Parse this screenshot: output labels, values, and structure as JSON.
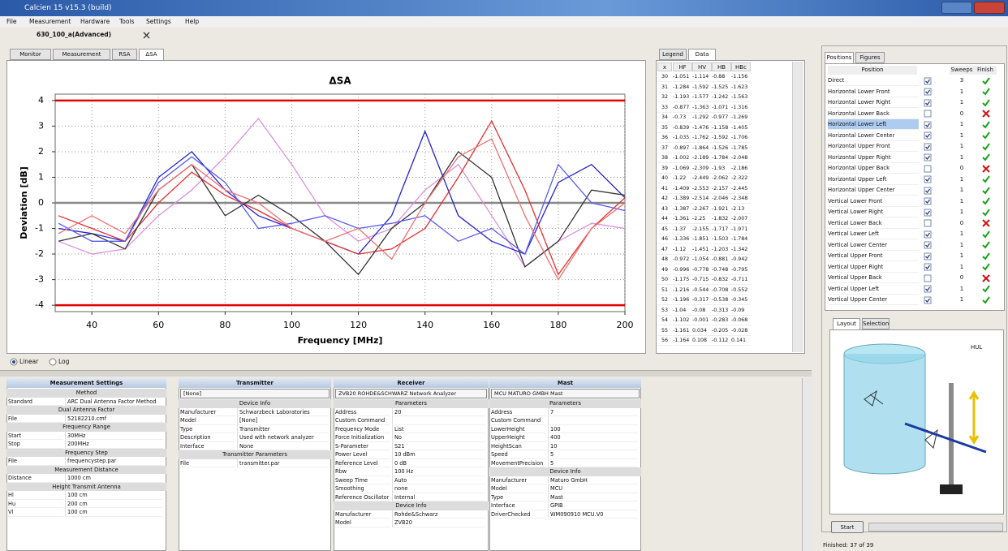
{
  "window": {
    "title": "Calcien 15 v15.3 (build)"
  },
  "menu": [
    "File",
    "Measurement",
    "Hardware",
    "Tools",
    "Settings",
    "Help"
  ],
  "document_tab": "630_100_a(Advanced)",
  "view_tabs": [
    "Monitor",
    "Measurement",
    "RSA",
    "ΔSA"
  ],
  "chart_data": {
    "type": "line",
    "title": "ΔSA",
    "x_label": "Frequency [MHz]",
    "y_label": "Deviation [dB]",
    "x": [
      30,
      40,
      50,
      60,
      70,
      80,
      90,
      100,
      110,
      120,
      130,
      140,
      150,
      160,
      170,
      180,
      190,
      200
    ],
    "series": [
      {
        "color": "#e08ede",
        "values": [
          -1.5,
          -2,
          -1.8,
          -0.5,
          0.5,
          1.8,
          3.3,
          1.5,
          -0.5,
          -1.5,
          -1,
          0.5,
          1.5,
          -0.5,
          -2.5,
          -1.5,
          -0.8,
          -1
        ]
      },
      {
        "color": "#2424d0",
        "values": [
          -1,
          -1.2,
          -1.5,
          1,
          2,
          0.5,
          -0.5,
          -1,
          -1.5,
          -2,
          -0.5,
          2.8,
          -0.5,
          -1.5,
          -2,
          0.8,
          1.5,
          0.2
        ]
      },
      {
        "color": "#e23030",
        "values": [
          -0.5,
          -1,
          -1.5,
          0,
          1.2,
          0.3,
          -0.3,
          -1,
          -1.5,
          -2,
          -1.8,
          -1,
          1,
          3.2,
          0.5,
          -2.8,
          -1,
          0.2
        ]
      },
      {
        "color": "#333333",
        "values": [
          -1.5,
          -1.2,
          -1.8,
          0.5,
          1.5,
          -0.5,
          0.3,
          -0.5,
          -1.5,
          -2.8,
          -1,
          0,
          2,
          1,
          -2.5,
          -1.5,
          0.5,
          0.3
        ]
      },
      {
        "color": "#5a5af0",
        "values": [
          -0.8,
          -1.5,
          -1.5,
          0.8,
          1.8,
          0.8,
          -1,
          -0.8,
          -0.5,
          -1,
          -0.8,
          -0.5,
          -1.5,
          -1,
          -2,
          1.5,
          0,
          -0.3
        ]
      },
      {
        "color": "#f07070",
        "values": [
          -1.2,
          -0.5,
          -1.2,
          0.5,
          1.5,
          0.5,
          0,
          -1,
          -1.5,
          -1,
          -2.2,
          0,
          1.8,
          2.5,
          -0.5,
          -3,
          -1,
          0
        ]
      }
    ],
    "xlim": [
      29,
      200
    ],
    "ylim": [
      -4.25,
      4.25
    ],
    "xticks": [
      40,
      60,
      80,
      100,
      120,
      140,
      160,
      180,
      200
    ],
    "yticks": [
      -4,
      -3,
      -2,
      -1,
      0,
      1,
      2,
      3,
      4
    ],
    "grid": true,
    "limit_lines": [
      -4,
      4
    ],
    "limit_color": "#e00000"
  },
  "scale_options": [
    "Linear",
    "Log"
  ],
  "data_panel": {
    "tabs": [
      "Legend",
      "Data"
    ],
    "columns": [
      "x",
      "HF",
      "HV",
      "HB",
      "HBc"
    ],
    "rows": [
      [
        "30",
        "-1.051",
        "-1.114",
        "-0.88",
        "-1.156"
      ],
      [
        "31",
        "-1.284",
        "-1.592",
        "-1.525",
        "-1.623"
      ],
      [
        "32",
        "-1.193",
        "-1.577",
        "-1.242",
        "-1.563"
      ],
      [
        "33",
        "-0.877",
        "-1.363",
        "-1.071",
        "-1.316"
      ],
      [
        "34",
        "-0.73",
        "-1.292",
        "-0.977",
        "-1.269"
      ],
      [
        "35",
        "-0.839",
        "-1.476",
        "-1.158",
        "-1.405"
      ],
      [
        "36",
        "-1.035",
        "-1.762",
        "-1.592",
        "-1.706"
      ],
      [
        "37",
        "-0.897",
        "-1.864",
        "-1.526",
        "-1.785"
      ],
      [
        "38",
        "-1.002",
        "-2.189",
        "-1.784",
        "-2.048"
      ],
      [
        "39",
        "-1.069",
        "-2.309",
        "-1.93",
        "-2.186"
      ],
      [
        "40",
        "-1.22",
        "-2.449",
        "-2.062",
        "-2.322"
      ],
      [
        "41",
        "-1.409",
        "-2.553",
        "-2.157",
        "-2.445"
      ],
      [
        "42",
        "-1.389",
        "-2.514",
        "-2.046",
        "-2.348"
      ],
      [
        "43",
        "-1.387",
        "-2.267",
        "-1.921",
        "-2.13"
      ],
      [
        "44",
        "-1.361",
        "-2.25",
        "-1.832",
        "-2.007"
      ],
      [
        "45",
        "-1.37",
        "-2.155",
        "-1.717",
        "-1.971"
      ],
      [
        "46",
        "-1.336",
        "-1.851",
        "-1.503",
        "-1.784"
      ],
      [
        "47",
        "-1.12",
        "-1.451",
        "-1.203",
        "-1.342"
      ],
      [
        "48",
        "-0.972",
        "-1.054",
        "-0.881",
        "-0.942"
      ],
      [
        "49",
        "-0.996",
        "-0.778",
        "-0.748",
        "-0.795"
      ],
      [
        "50",
        "-1.175",
        "-0.715",
        "-0.832",
        "-0.711"
      ],
      [
        "51",
        "-1.216",
        "-0.544",
        "-0.708",
        "-0.552"
      ],
      [
        "52",
        "-1.196",
        "-0.317",
        "-0.538",
        "-0.345"
      ],
      [
        "53",
        "-1.04",
        "-0.08",
        "-0.313",
        "-0.09"
      ],
      [
        "54",
        "-1.102",
        "-0.001",
        "-0.283",
        "-0.068"
      ],
      [
        "55",
        "-1.161",
        "0.034",
        "-0.205",
        "-0.028"
      ],
      [
        "56",
        "-1.164",
        "0.108",
        "-0.112",
        "0.141"
      ]
    ]
  },
  "positions_panel": {
    "tabs": [
      "Positions",
      "Figures"
    ],
    "columns": [
      "Position",
      "Sweeps",
      "Finish"
    ],
    "rows": [
      {
        "name": "Direct",
        "enabled": true,
        "sweeps": 3,
        "finished": true
      },
      {
        "name": "Horizontal Lower Front",
        "enabled": true,
        "sweeps": 1,
        "finished": true
      },
      {
        "name": "Horizontal Lower Right",
        "enabled": true,
        "sweeps": 1,
        "finished": true
      },
      {
        "name": "Horizontal Lower Back",
        "enabled": false,
        "sweeps": 0,
        "finished": false
      },
      {
        "name": "Horizontal Lower Left",
        "enabled": true,
        "sweeps": 1,
        "finished": true,
        "selected": true
      },
      {
        "name": "Horizontal Lower Center",
        "enabled": true,
        "sweeps": 1,
        "finished": true
      },
      {
        "name": "Horizontal Upper Front",
        "enabled": true,
        "sweeps": 1,
        "finished": true
      },
      {
        "name": "Horizontal Upper Right",
        "enabled": true,
        "sweeps": 1,
        "finished": true
      },
      {
        "name": "Horizontal Upper Back",
        "enabled": false,
        "sweeps": 0,
        "finished": false
      },
      {
        "name": "Horizontal Upper Left",
        "enabled": true,
        "sweeps": 1,
        "finished": true
      },
      {
        "name": "Horizontal Upper Center",
        "enabled": true,
        "sweeps": 1,
        "finished": true
      },
      {
        "name": "Vertical Lower Front",
        "enabled": true,
        "sweeps": 1,
        "finished": true
      },
      {
        "name": "Vertical Lower Right",
        "enabled": true,
        "sweeps": 1,
        "finished": true
      },
      {
        "name": "Vertical Lower Back",
        "enabled": false,
        "sweeps": 0,
        "finished": false
      },
      {
        "name": "Vertical Lower Left",
        "enabled": true,
        "sweeps": 1,
        "finished": true
      },
      {
        "name": "Vertical Lower Center",
        "enabled": true,
        "sweeps": 1,
        "finished": true
      },
      {
        "name": "Vertical Upper Front",
        "enabled": true,
        "sweeps": 1,
        "finished": true
      },
      {
        "name": "Vertical Upper Right",
        "enabled": true,
        "sweeps": 1,
        "finished": true
      },
      {
        "name": "Vertical Upper Back",
        "enabled": false,
        "sweeps": 0,
        "finished": false
      },
      {
        "name": "Vertical Upper Left",
        "enabled": true,
        "sweeps": 1,
        "finished": true
      },
      {
        "name": "Vertical Upper Center",
        "enabled": true,
        "sweeps": 1,
        "finished": true
      }
    ]
  },
  "layout_panel": {
    "tabs": [
      "Layout",
      "Selection"
    ],
    "label": "HUL"
  },
  "start_button": "Start",
  "status": "Finished: 37 of 39",
  "settings_panels": [
    {
      "title": "Measurement Settings",
      "rows": [
        {
          "section": "Method"
        },
        {
          "key": "Standard",
          "value": "ARC Dual Antenna Factor Method"
        },
        {
          "section": "Dual Antenna Factor"
        },
        {
          "key": "File",
          "value": "52182210.cmf"
        },
        {
          "section": "Frequency Range"
        },
        {
          "key": "Start",
          "value": "30MHz"
        },
        {
          "key": "Stop",
          "value": "200MHz"
        },
        {
          "section": "Frequency Step"
        },
        {
          "key": "File",
          "value": "frequencystep.par"
        },
        {
          "section": "Measurement Distance"
        },
        {
          "key": "Distance",
          "value": "1000 cm"
        },
        {
          "section": "Height Transmit Antenna"
        },
        {
          "key": "Hl",
          "value": "100 cm"
        },
        {
          "key": "Hu",
          "value": "200 cm"
        },
        {
          "key": "Vl",
          "value": "100 cm"
        }
      ]
    },
    {
      "title": "Transmitter",
      "selection": "[None]",
      "rows": [
        {
          "section": "Device Info"
        },
        {
          "key": "Manufacturer",
          "value": "Schwarzbeck Laboratories"
        },
        {
          "key": "Model",
          "value": "[None]"
        },
        {
          "key": "Type",
          "value": "Transmitter"
        },
        {
          "key": "Description",
          "value": "Used with network analyzer"
        },
        {
          "key": "Interface",
          "value": "None"
        },
        {
          "section": "Transmitter Parameters"
        },
        {
          "key": "File",
          "value": "transmitter.par"
        }
      ]
    },
    {
      "title": "Receiver",
      "selection": "ZVB20 ROHDE&SCHWARZ Network Analyzer",
      "rows": [
        {
          "section": "Parameters"
        },
        {
          "key": "Address",
          "value": "20"
        },
        {
          "key": "Custom Command",
          "value": ""
        },
        {
          "key": "Frequency Mode",
          "value": "List"
        },
        {
          "key": "Force Initialization",
          "value": "No"
        },
        {
          "key": "S-Parameter",
          "value": "S21"
        },
        {
          "key": "Power Level",
          "value": "10 dBm"
        },
        {
          "key": "Reference Level",
          "value": "0 dB"
        },
        {
          "key": "Rbw",
          "value": "100 Hz"
        },
        {
          "key": "Sweep Time",
          "value": "Auto"
        },
        {
          "key": "Smoothing",
          "value": "none"
        },
        {
          "key": "Reference Oscillator",
          "value": "Internal"
        },
        {
          "section": "Device Info"
        },
        {
          "key": "Manufacturer",
          "value": "Rohde&Schwarz"
        },
        {
          "key": "Model",
          "value": "ZVB20"
        }
      ]
    },
    {
      "title": "Mast",
      "selection": "MCU MATURO GMBH Mast",
      "rows": [
        {
          "section": "Parameters"
        },
        {
          "key": "Address",
          "value": "7"
        },
        {
          "key": "Custom Command",
          "value": ""
        },
        {
          "key": "LowerHeight",
          "value": "100"
        },
        {
          "key": "UpperHeight",
          "value": "400"
        },
        {
          "key": "HeightScan",
          "value": "10"
        },
        {
          "key": "Speed",
          "value": "5"
        },
        {
          "key": "MovementPrecision",
          "value": "5"
        },
        {
          "section": "Device Info"
        },
        {
          "key": "Manufacturer",
          "value": "Maturo GmbH"
        },
        {
          "key": "Model",
          "value": "MCU"
        },
        {
          "key": "Type",
          "value": "Mast"
        },
        {
          "key": "Interface",
          "value": "GPIB"
        },
        {
          "key": "DriverChecked",
          "value": "WM090910 MCU.V0"
        }
      ]
    }
  ]
}
